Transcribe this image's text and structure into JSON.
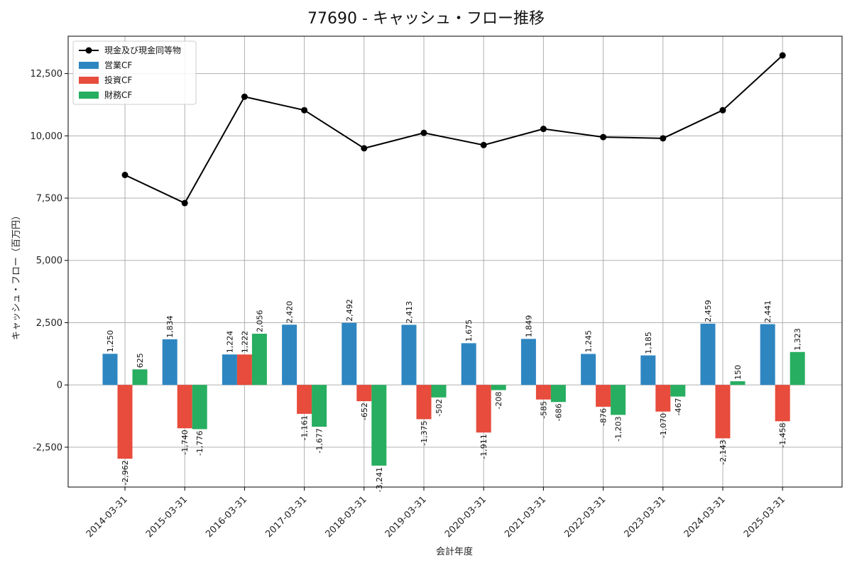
{
  "chart_data": {
    "type": "bar",
    "title": "77690 - キャッシュ・フロー推移",
    "xlabel": "会計年度",
    "ylabel": "キャッシュ・フロー（百万円）",
    "ylim": [
      -4100,
      14000
    ],
    "yticks": [
      -2500,
      0,
      2500,
      5000,
      7500,
      10000,
      12500
    ],
    "ytick_labels": [
      "-2,500",
      "0",
      "2,500",
      "5,000",
      "7,500",
      "10,000",
      "12,500"
    ],
    "grid": true,
    "legend_position": "top-left",
    "categories": [
      "2014-03-31",
      "2015-03-31",
      "2016-03-31",
      "2017-03-31",
      "2018-03-31",
      "2019-03-31",
      "2020-03-31",
      "2021-03-31",
      "2022-03-31",
      "2023-03-31",
      "2024-03-31",
      "2025-03-31"
    ],
    "line_series": {
      "name": "現金及び現金同等物",
      "color": "#000000",
      "values": [
        8430,
        7300,
        11570,
        11030,
        9500,
        10120,
        9630,
        10280,
        9950,
        9900,
        11030,
        13230
      ]
    },
    "series": [
      {
        "name": "営業CF",
        "color": "#2e86c1",
        "values": [
          1250,
          1834,
          1224,
          2420,
          2492,
          2413,
          1675,
          1849,
          1245,
          1185,
          2459,
          2441
        ],
        "labels": [
          "1,250",
          "1,834",
          "1,224",
          "2,420",
          "2,492",
          "2,413",
          "1,675",
          "1,849",
          "1,245",
          "1,185",
          "2,459",
          "2,441"
        ]
      },
      {
        "name": "投資CF",
        "color": "#e74c3c",
        "values": [
          -2962,
          -1740,
          1222,
          -1161,
          -652,
          -1375,
          -1911,
          -585,
          -876,
          -1070,
          -2143,
          -1458
        ],
        "labels": [
          "-2,962",
          "-1,740",
          "1,222",
          "-1,161",
          "-652",
          "-1,375",
          "-1,911",
          "-585",
          "-876",
          "-1,070",
          "-2,143",
          "-1,458"
        ]
      },
      {
        "name": "財務CF",
        "color": "#27ae60",
        "values": [
          625,
          -1776,
          2056,
          -1677,
          -3241,
          -502,
          -208,
          -686,
          -1203,
          -467,
          150,
          1323
        ],
        "labels": [
          "625",
          "-1,776",
          "2,056",
          "-1,677",
          "-3,241",
          "-502",
          "-208",
          "-686",
          "-1,203",
          "-467",
          "150",
          "1,323"
        ]
      }
    ]
  }
}
